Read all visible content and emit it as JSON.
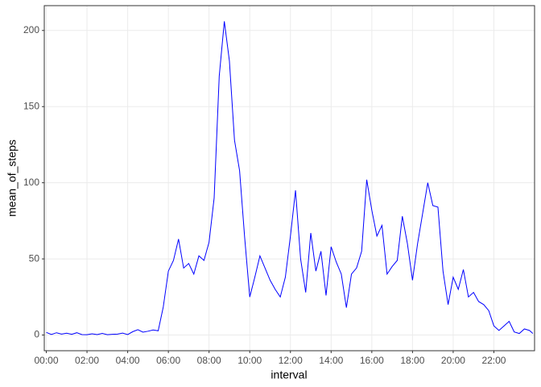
{
  "chart_data": {
    "type": "line",
    "x_label": "interval",
    "y_label": "mean_of_steps",
    "x": [
      0,
      0.25,
      0.5,
      0.75,
      1,
      1.25,
      1.5,
      1.75,
      2,
      2.25,
      2.5,
      2.75,
      3,
      3.25,
      3.5,
      3.75,
      4,
      4.25,
      4.5,
      4.75,
      5,
      5.25,
      5.5,
      5.75,
      6,
      6.25,
      6.5,
      6.75,
      7,
      7.25,
      7.5,
      7.75,
      8,
      8.25,
      8.5,
      8.75,
      9,
      9.25,
      9.5,
      9.75,
      10,
      10.25,
      10.5,
      10.75,
      11,
      11.25,
      11.5,
      11.75,
      12,
      12.25,
      12.5,
      12.75,
      13,
      13.25,
      13.5,
      13.75,
      14,
      14.25,
      14.5,
      14.75,
      15,
      15.25,
      15.5,
      15.75,
      16,
      16.25,
      16.5,
      16.75,
      17,
      17.25,
      17.5,
      17.75,
      18,
      18.25,
      18.5,
      18.75,
      19,
      19.25,
      19.5,
      19.75,
      20,
      20.25,
      20.5,
      20.75,
      21,
      21.25,
      21.5,
      21.75,
      22,
      22.25,
      22.5,
      22.75,
      23,
      23.25,
      23.5,
      23.75,
      23.9167
    ],
    "series": [
      {
        "name": "mean_of_steps",
        "color": "#0000ff",
        "values": [
          1.7,
          0.4,
          1.5,
          0.6,
          1.2,
          0.5,
          1.5,
          0.3,
          0.2,
          0.8,
          0.3,
          1.1,
          0.2,
          0.5,
          0.6,
          1.3,
          0.3,
          2.2,
          3.5,
          1.9,
          2.5,
          3.3,
          2.8,
          18.5,
          42,
          49,
          63,
          44,
          47,
          40,
          52,
          49,
          61,
          90,
          170,
          206,
          180,
          128,
          108,
          64,
          25,
          38,
          52,
          44,
          36,
          30,
          25,
          38,
          65,
          95,
          50,
          28,
          67,
          42,
          55,
          26,
          58,
          48,
          40,
          18,
          40,
          44,
          55,
          102,
          82,
          65,
          72,
          40,
          45,
          49,
          78,
          60,
          36,
          60,
          80,
          100,
          85,
          84,
          42,
          20,
          38,
          30,
          43,
          25,
          28,
          22,
          20,
          16,
          6,
          3,
          6,
          9,
          2,
          1,
          4,
          3,
          1
        ]
      }
    ],
    "xlim": [
      -0.1,
      24.0
    ],
    "ylim": [
      -10.3,
      216.3
    ],
    "xticks": [
      {
        "value": 0,
        "label": "00:00"
      },
      {
        "value": 2,
        "label": "02:00"
      },
      {
        "value": 4,
        "label": "04:00"
      },
      {
        "value": 6,
        "label": "06:00"
      },
      {
        "value": 8,
        "label": "08:00"
      },
      {
        "value": 10,
        "label": "10:00"
      },
      {
        "value": 12,
        "label": "12:00"
      },
      {
        "value": 14,
        "label": "14:00"
      },
      {
        "value": 16,
        "label": "16:00"
      },
      {
        "value": 18,
        "label": "18:00"
      },
      {
        "value": 20,
        "label": "20:00"
      },
      {
        "value": 22,
        "label": "22:00"
      }
    ],
    "yticks": [
      0,
      50,
      100,
      150,
      200
    ],
    "grid": true
  }
}
